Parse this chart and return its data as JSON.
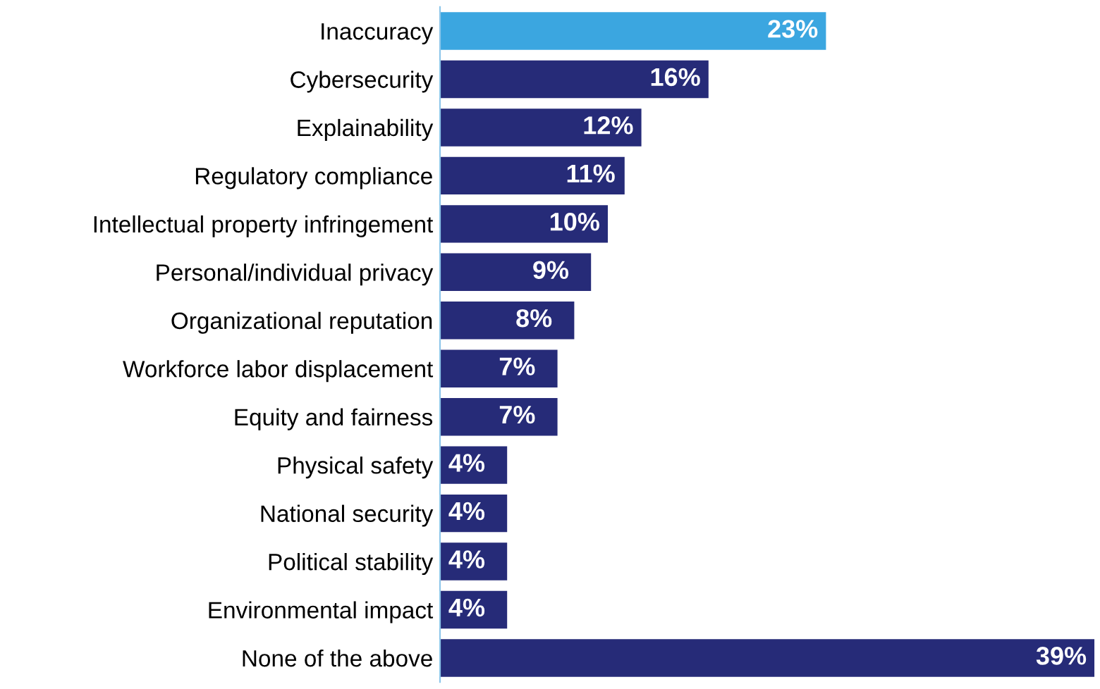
{
  "chart_data": {
    "type": "bar",
    "orientation": "horizontal",
    "categories": [
      "Inaccuracy",
      "Cybersecurity",
      "Explainability",
      "Regulatory compliance",
      "Intellectual property infringement",
      "Personal/individual privacy",
      "Organizational reputation",
      "Workforce labor displacement",
      "Equity and fairness",
      "Physical safety",
      "National security",
      "Political stability",
      "Environmental impact",
      "None of the above"
    ],
    "values": [
      23,
      16,
      12,
      11,
      10,
      9,
      8,
      7,
      7,
      4,
      4,
      4,
      4,
      39
    ],
    "value_labels": [
      "23%",
      "16%",
      "12%",
      "11%",
      "10%",
      "9%",
      "8%",
      "7%",
      "7%",
      "4%",
      "4%",
      "4%",
      "4%",
      "39%"
    ],
    "colors": [
      "#3ba6e0",
      "#262b78",
      "#262b78",
      "#262b78",
      "#262b78",
      "#262b78",
      "#262b78",
      "#262b78",
      "#262b78",
      "#262b78",
      "#262b78",
      "#262b78",
      "#262b78",
      "#262b78"
    ],
    "grid": false,
    "legend": false,
    "tick_labels": "y"
  }
}
